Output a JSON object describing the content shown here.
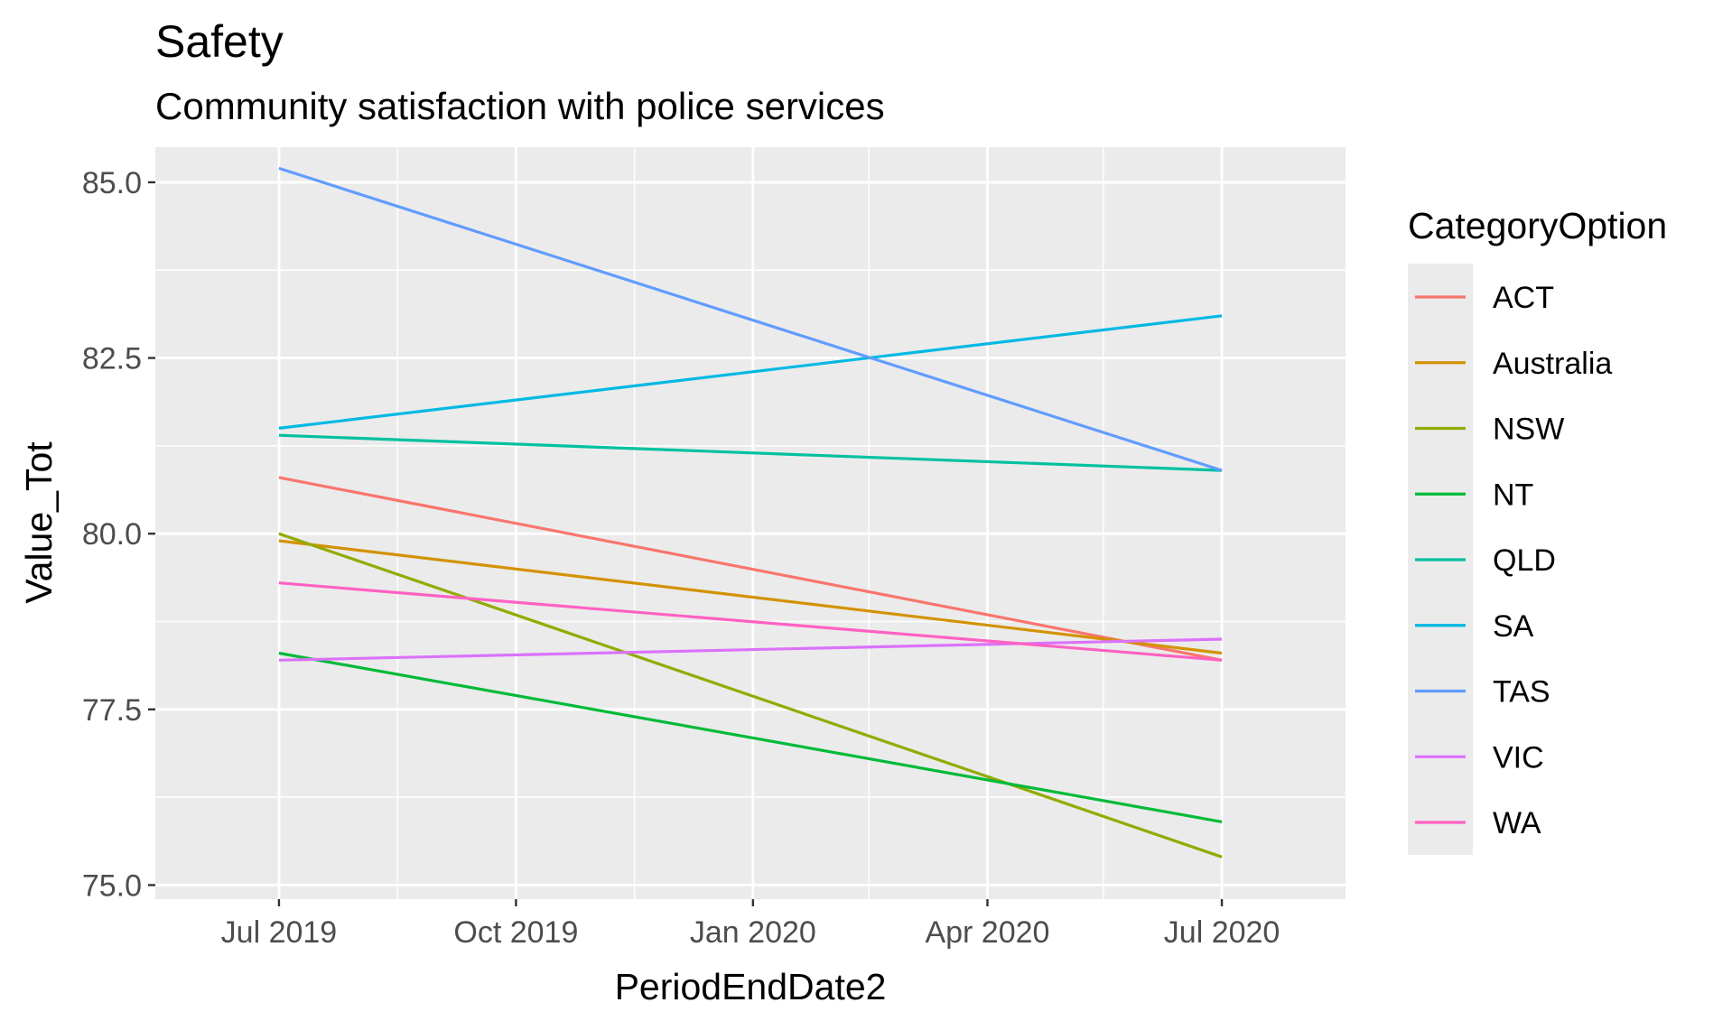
{
  "chart_data": {
    "type": "line",
    "title": "Safety",
    "subtitle": "Community satisfaction with police services",
    "xlabel": "PeriodEndDate2",
    "ylabel": "Value_Tot",
    "x": [
      "2019-07-01",
      "2020-07-01"
    ],
    "x_ticks": [
      {
        "date": "2019-07-01",
        "label": "Jul 2019"
      },
      {
        "date": "2019-10-01",
        "label": "Oct 2019"
      },
      {
        "date": "2020-01-01",
        "label": "Jan 2020"
      },
      {
        "date": "2020-04-01",
        "label": "Apr 2020"
      },
      {
        "date": "2020-07-01",
        "label": "Jul 2020"
      }
    ],
    "x_minor_ticks": [
      "2019-08-16",
      "2019-11-16",
      "2020-02-15",
      "2020-05-16"
    ],
    "xlim": [
      "2019-05-14",
      "2020-08-18"
    ],
    "ylim": [
      74.8,
      85.5
    ],
    "y_ticks": [
      75.0,
      77.5,
      80.0,
      82.5,
      85.0
    ],
    "y_tick_labels": [
      "75.0",
      "77.5",
      "80.0",
      "82.5",
      "85.0"
    ],
    "y_minor_ticks": [
      76.25,
      78.75,
      81.25,
      83.75
    ],
    "grid": true,
    "legend_title": "CategoryOption",
    "legend_position": "right",
    "series": [
      {
        "name": "ACT",
        "color": "#F8766D",
        "values": [
          80.8,
          78.2
        ]
      },
      {
        "name": "Australia",
        "color": "#D39200",
        "values": [
          79.9,
          78.3
        ]
      },
      {
        "name": "NSW",
        "color": "#93AA00",
        "values": [
          80.0,
          75.4
        ]
      },
      {
        "name": "NT",
        "color": "#00BA38",
        "values": [
          78.3,
          75.9
        ]
      },
      {
        "name": "QLD",
        "color": "#00C19F",
        "values": [
          81.4,
          80.9
        ]
      },
      {
        "name": "SA",
        "color": "#00B9E3",
        "values": [
          81.5,
          83.1
        ]
      },
      {
        "name": "TAS",
        "color": "#619CFF",
        "values": [
          85.2,
          80.9
        ]
      },
      {
        "name": "VIC",
        "color": "#DB72FB",
        "values": [
          78.2,
          78.5
        ]
      },
      {
        "name": "WA",
        "color": "#FF61C3",
        "values": [
          79.3,
          78.2
        ]
      }
    ]
  }
}
